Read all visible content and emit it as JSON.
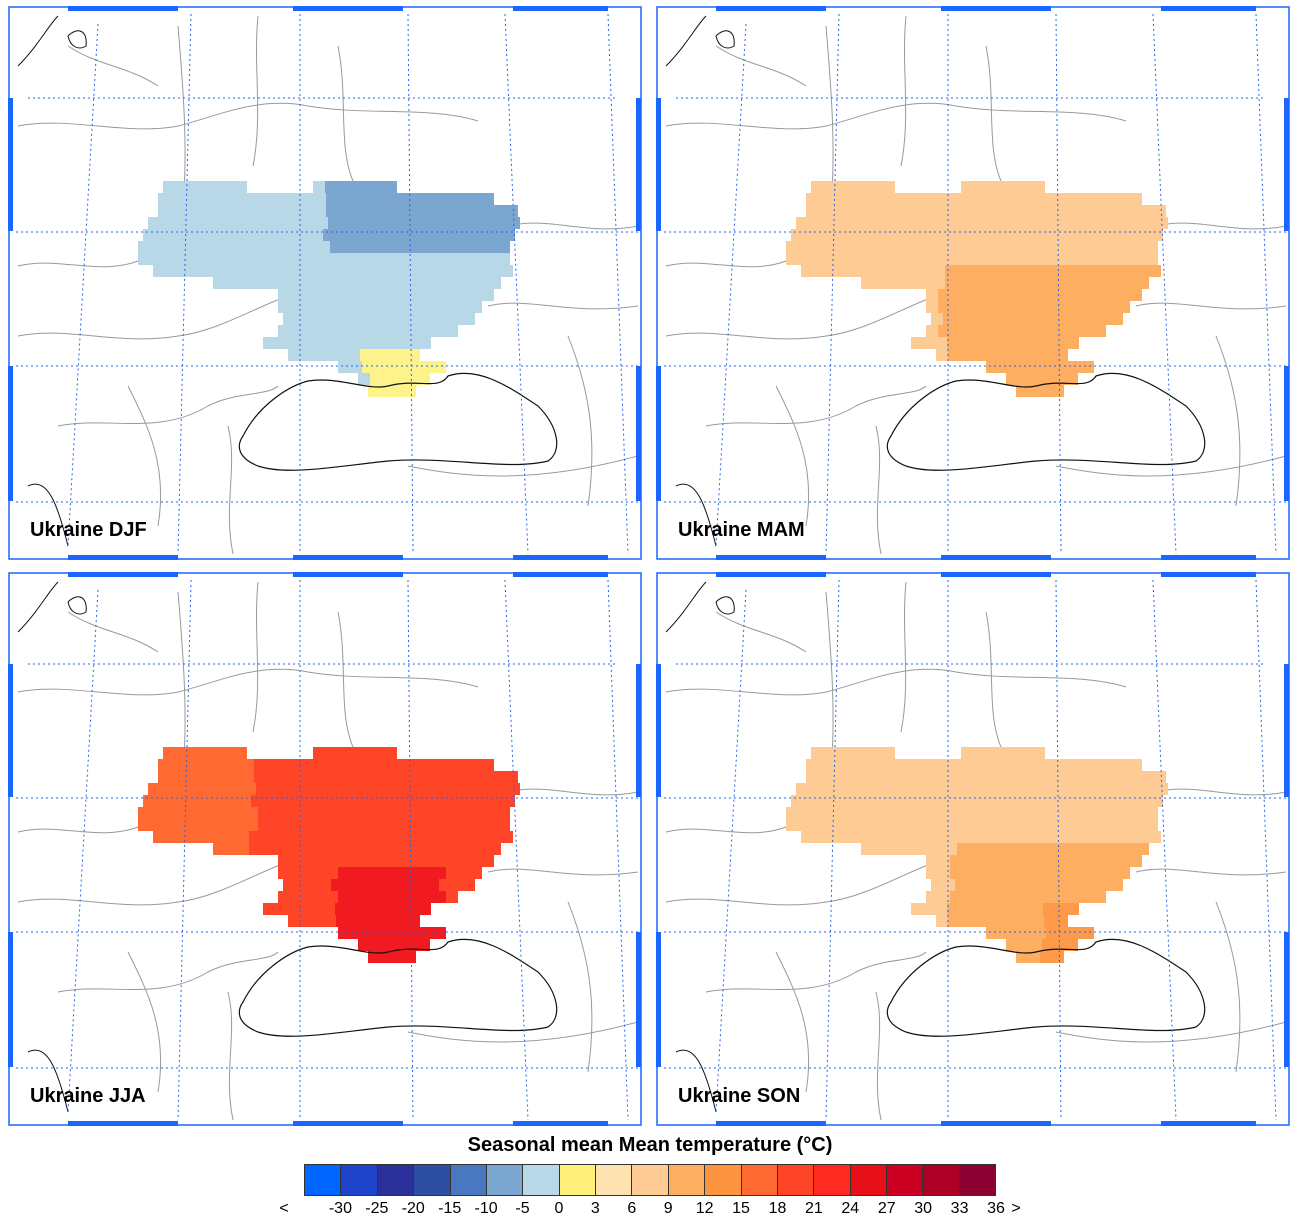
{
  "panels": [
    {
      "label": "Ukraine DJF",
      "fill": "#b8d8e8",
      "accent": "#7aa6cf",
      "extra": "#fdf38a"
    },
    {
      "label": "Ukraine MAM",
      "fill": "#fecb94",
      "accent": "#fdae60",
      "extra": "#fee2b0"
    },
    {
      "label": "Ukraine JJA",
      "fill": "#ff4527",
      "accent": "#ff6a33",
      "extra": "#f01a20"
    },
    {
      "label": "Ukraine SON",
      "fill": "#fecb94",
      "accent": "#fdae60",
      "extra": "#fd9a4a"
    }
  ],
  "colorbar": {
    "title": "Seasonal mean Mean temperature (°C)",
    "colors": [
      "#0066ff",
      "#1f44cc",
      "#2a2f99",
      "#2d4da0",
      "#4a78c0",
      "#7aa6cf",
      "#b8d8e8",
      "#fef07a",
      "#fee2b0",
      "#fecb94",
      "#fdae60",
      "#fd9440",
      "#ff6a33",
      "#ff4527",
      "#ff2a20",
      "#e81018",
      "#cc0022",
      "#ad0026",
      "#8b0030"
    ],
    "ticks": [
      "<",
      "-30",
      "-25",
      "-20",
      "-15",
      "-10",
      "-5",
      "0",
      "3",
      "6",
      "9",
      "12",
      "15",
      "18",
      "21",
      "24",
      "27",
      "30",
      "33",
      "36",
      ">"
    ]
  },
  "colors": {
    "grid": "#2266ee",
    "frame": "#1a66ff",
    "coast": "#111111",
    "border": "#999999"
  }
}
